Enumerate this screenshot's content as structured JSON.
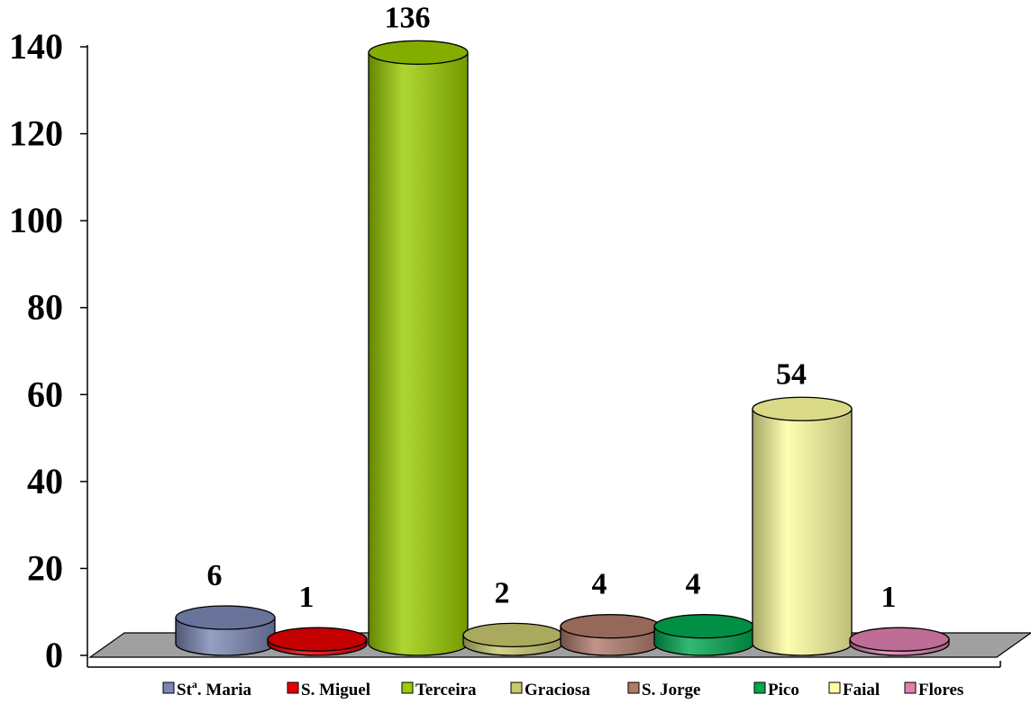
{
  "chart_data": {
    "type": "bar",
    "style": "3d-cylinder",
    "categories": [
      "Stª. Maria",
      "S. Miguel",
      "Terceira",
      "Graciosa",
      "S. Jorge",
      "Pico",
      "Faial",
      "Flores"
    ],
    "legend_labels": [
      {
        "main": "St",
        "sup": "a",
        "rest": ". Maria"
      },
      {
        "main": "S. Miguel",
        "sup": "",
        "rest": ""
      },
      {
        "main": "Terceira",
        "sup": "",
        "rest": ""
      },
      {
        "main": "Graciosa",
        "sup": "",
        "rest": ""
      },
      {
        "main": "S. Jorge",
        "sup": "",
        "rest": ""
      },
      {
        "main": "Pico",
        "sup": "",
        "rest": ""
      },
      {
        "main": "Faial",
        "sup": "",
        "rest": ""
      },
      {
        "main": "Flores",
        "sup": "",
        "rest": ""
      }
    ],
    "values": [
      6,
      1,
      136,
      2,
      4,
      4,
      54,
      1
    ],
    "data_labels": [
      "6",
      "1",
      "136",
      "2",
      "4",
      "4",
      "54",
      "1"
    ],
    "colors": [
      "#7b87b4",
      "#e60000",
      "#9acd00",
      "#c8c870",
      "#b07a6a",
      "#00a850",
      "#ffffa0",
      "#e080b0"
    ],
    "yticks": [
      "0",
      "20",
      "40",
      "60",
      "80",
      "100",
      "120",
      "140"
    ],
    "ylim": [
      0,
      140
    ],
    "title": "",
    "xlabel": "",
    "ylabel": "",
    "grid": false,
    "legend_position": "bottom",
    "floor_color": "#a0a0a0"
  }
}
